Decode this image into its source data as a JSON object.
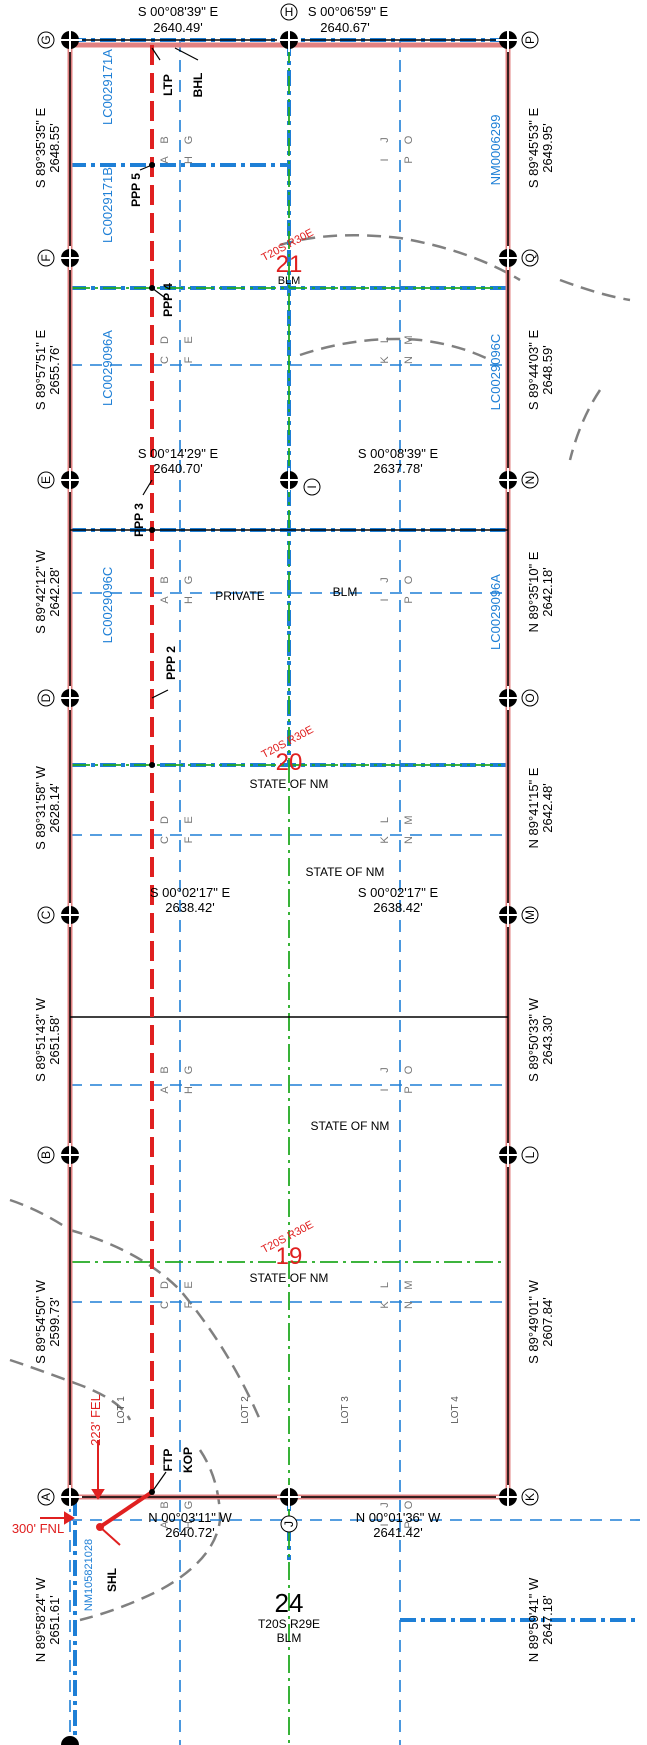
{
  "bearings": {
    "top_left": "S 00°08'39\" E",
    "top_left_dist": "2640.49'",
    "top_right": "S 00°06'59\" E",
    "top_right_dist": "2640.67'",
    "mid_left": "S 00°14'29\" E",
    "mid_left_dist": "2640.70'",
    "mid_right": "S 00°08'39\" E",
    "mid_right_dist": "2637.78'",
    "low_left": "S 00°02'17\" E",
    "low_left_dist": "2638.42'",
    "low_right": "S 00°02'17\" E",
    "low_right_dist": "2638.42'",
    "bot_left": "N 00°03'11\" W",
    "bot_left_dist": "2640.72'",
    "bot_right": "N 00°01'36\" W",
    "bot_right_dist": "2641.42'",
    "left_1": "S 89°35'35\" E",
    "left_1_dist": "2648.55'",
    "left_2": "S 89°57'51\" E",
    "left_2_dist": "2655.76'",
    "left_3": "S 89°42'12\" W",
    "left_3_dist": "2642.28'",
    "left_4": "S 89°31'58\" W",
    "left_4_dist": "2628.14'",
    "left_5": "S 89°51'43\" W",
    "left_5_dist": "2651.58'",
    "left_6": "S 89°54'50\" W",
    "left_6_dist": "2599.73'",
    "left_7": "N 89°58'24\" W",
    "left_7_dist": "2651.61'",
    "right_1": "S 89°45'53\" E",
    "right_1_dist": "2649.95'",
    "right_2": "S 89°44'03\" E",
    "right_2_dist": "2648.59'",
    "right_3": "N 89°35'10\" E",
    "right_3_dist": "2642.18'",
    "right_4": "N 89°41'15\" E",
    "right_4_dist": "2642.48'",
    "right_5": "S 89°50'33\" W",
    "right_5_dist": "2643.30'",
    "right_6": "S 89°49'01\" W",
    "right_6_dist": "2607.84'",
    "right_7": "N 89°59'41\" W",
    "right_7_dist": "2647.18'"
  },
  "corners": {
    "G": "G",
    "H": "H",
    "P": "P",
    "F": "F",
    "Q": "Q",
    "E": "E",
    "I": "I",
    "N": "N",
    "D": "D",
    "O": "O",
    "C": "C",
    "M": "M",
    "B": "B",
    "L": "L",
    "A": "A",
    "J": "J",
    "K": "K"
  },
  "leases": {
    "lc1": "LC0029171A",
    "lc2": "LC0029171B",
    "lc3": "LC0029096A",
    "lc4": "LC0029096C",
    "lc5": "LC0029096C",
    "lc6": "LC0029096A",
    "nm1": "NM0006299",
    "nm2": "NM105821028"
  },
  "sections": {
    "s21": "21",
    "s21_twp": "T20S R30E",
    "s21_owner": "BLM",
    "s20": "20",
    "s20_twp": "T20S R30E",
    "s20_owner": "STATE OF NM",
    "s19": "19",
    "s19_twp": "T20S R30E",
    "s19_owner": "STATE OF NM",
    "s24": "24",
    "s24_twp": "T20S R29E",
    "s24_owner": "BLM"
  },
  "ownership": {
    "private": "PRIVATE",
    "blm": "BLM",
    "state1": "STATE OF NM",
    "state2": "STATE OF NM"
  },
  "well_points": {
    "ltp": "LTP",
    "bhl": "BHL",
    "ppp5": "PPP 5",
    "ppp4": "PPP 4",
    "ppp3": "PPP 3",
    "ppp2": "PPP 2",
    "ftp": "FTP",
    "kop": "KOP",
    "shl": "SHL"
  },
  "offsets": {
    "fel": "223' FEL",
    "fnl": "300' FNL"
  },
  "lots": {
    "lot1": "LOT 1",
    "lot2": "LOT 2",
    "lot3": "LOT 3",
    "lot4": "LOT 4"
  },
  "qq": {
    "a": "A",
    "b": "B",
    "c": "C",
    "d": "D",
    "e": "E",
    "f": "F",
    "g": "G",
    "h": "H",
    "i": "I",
    "j": "J",
    "k": "K",
    "l": "L",
    "m": "M",
    "n": "N",
    "o": "O",
    "p": "P"
  },
  "colors": {
    "boundary": "#e08080",
    "well": "#e02020",
    "survey": "#000000",
    "quarter": "#1e7fd6",
    "section_line": "#22aa22",
    "lease": "#1e7fd6"
  }
}
